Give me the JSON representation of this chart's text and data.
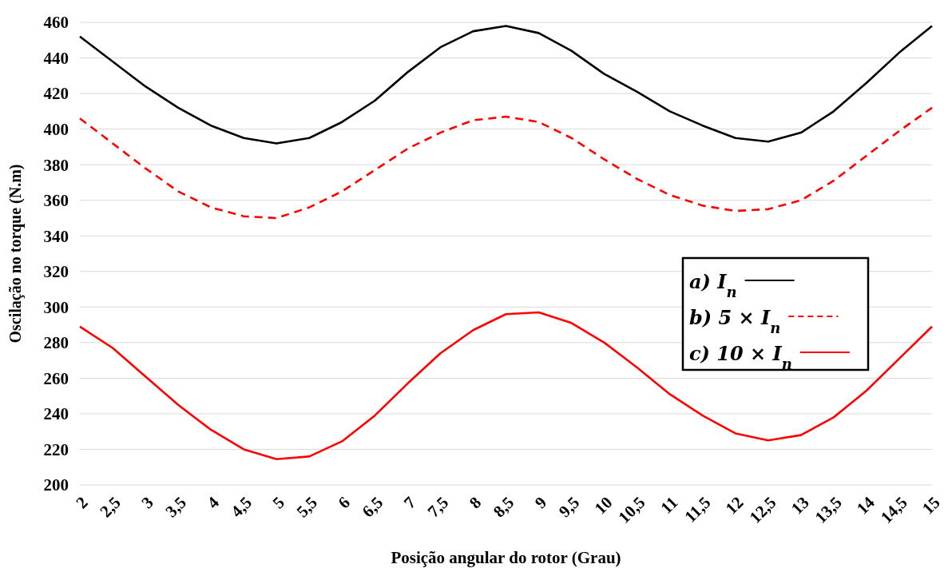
{
  "chart_data": {
    "type": "line",
    "xlabel": "Posição angular do rotor (Grau)",
    "ylabel": "Oscilação no torque (N.m)",
    "categories": [
      "2",
      "2,5",
      "3",
      "3,5",
      "4",
      "4,5",
      "5",
      "5,5",
      "6",
      "6,5",
      "7",
      "7,5",
      "8",
      "8,5",
      "9",
      "9,5",
      "10",
      "10,5",
      "11",
      "11,5",
      "12",
      "12,5",
      "13",
      "13,5",
      "14",
      "14,5",
      "15"
    ],
    "series": [
      {
        "name": "a) I$_{n}$",
        "color": "#000000",
        "line_style": "solid",
        "values": [
          452,
          438,
          424,
          412,
          402,
          395,
          392,
          395,
          404,
          416,
          432,
          446,
          455,
          458,
          454,
          444,
          431,
          421,
          410,
          402,
          395,
          393,
          398,
          410,
          426,
          443,
          458
        ]
      },
      {
        "name": "b) 5 × I$_{n}$",
        "color": "#ff0000",
        "line_style": "dashed",
        "values": [
          406,
          392,
          378,
          365,
          356,
          351,
          350,
          356,
          365,
          377,
          389,
          398,
          405,
          407,
          404,
          395,
          383,
          372,
          363,
          357,
          354,
          355,
          360,
          371,
          385,
          399,
          412
        ]
      },
      {
        "name": "c) 10 × I$_{n}$",
        "color": "#ff0000",
        "line_style": "solid",
        "values": [
          289,
          277,
          261,
          245,
          231,
          220,
          214.5,
          216,
          224.5,
          239,
          257,
          274,
          287,
          296,
          297,
          291,
          280,
          266,
          251,
          239,
          229,
          225,
          228,
          238,
          253,
          271,
          289
        ]
      }
    ],
    "ylim": [
      200,
      460
    ],
    "yticks": [
      200,
      220,
      240,
      260,
      280,
      300,
      320,
      340,
      360,
      380,
      400,
      420,
      440,
      460
    ],
    "grid": "y",
    "legend": "right",
    "marker": "none"
  }
}
